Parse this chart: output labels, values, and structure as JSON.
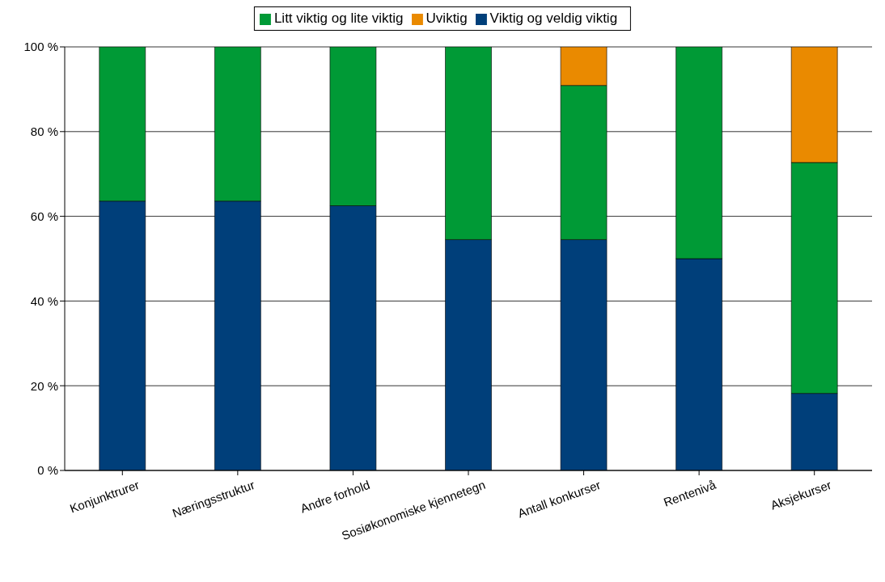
{
  "chart_data": {
    "type": "bar",
    "stacked": true,
    "categories": [
      "Konjunktrurer",
      "Næringsstruktur",
      "Andre forhold",
      "Sosiøkonomiske kjennetegn",
      "Antall konkurser",
      "Rentenivå",
      "Aksjekurser"
    ],
    "series": [
      {
        "name": "Viktig og veldig viktig",
        "color": "#003f7a",
        "values": [
          63.6,
          63.6,
          62.5,
          54.5,
          54.5,
          50,
          18.2
        ]
      },
      {
        "name": "Litt viktig og lite viktig",
        "color": "#009a36",
        "values": [
          36.4,
          36.4,
          37.5,
          45.5,
          36.4,
          50,
          54.5
        ]
      },
      {
        "name": "Uviktig",
        "color": "#ea8a00",
        "values": [
          0,
          0,
          0,
          0,
          9.1,
          0,
          27.3
        ]
      }
    ],
    "ylim": [
      0,
      100
    ],
    "yticks": [
      {
        "value": 0,
        "label": "0 %"
      },
      {
        "value": 20,
        "label": "20 %"
      },
      {
        "value": 40,
        "label": "40 %"
      },
      {
        "value": 60,
        "label": "60 %"
      },
      {
        "value": 80,
        "label": "80 %"
      },
      {
        "value": 100,
        "label": "100 %"
      }
    ],
    "grid": "y",
    "legend": "top"
  }
}
